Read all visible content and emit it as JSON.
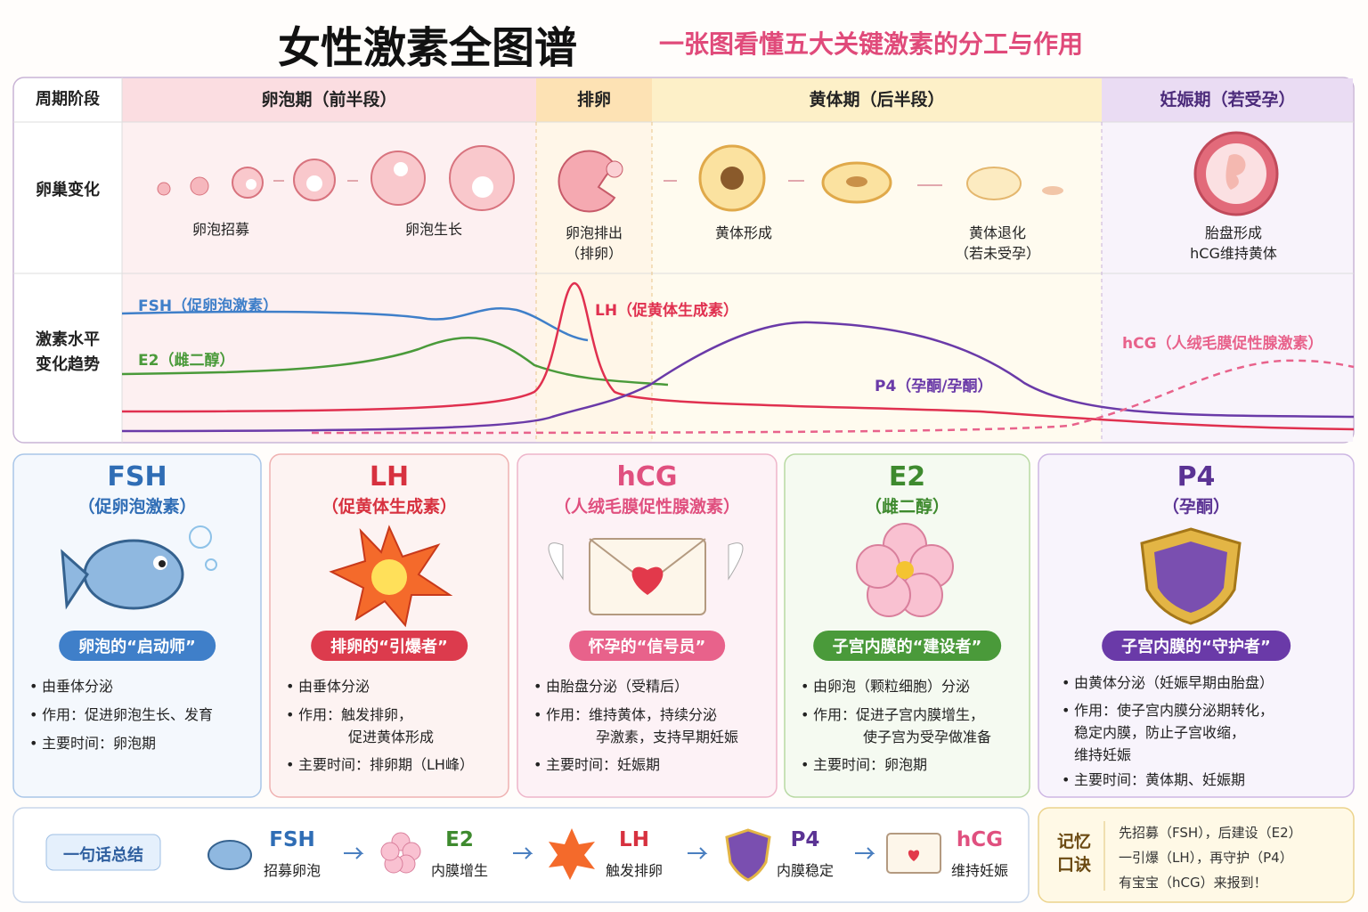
{
  "header": {
    "title": "女性激素全图谱",
    "subtitle": "一张图看懂五大关键激素的分工与作用"
  },
  "timeline": {
    "row_labels": [
      "周期阶段",
      "卵巢变化"
    ],
    "hormone_row_label": [
      "激素水平",
      "变化趋势"
    ],
    "phases": [
      "卵泡期（前半段）",
      "排卵",
      "黄体期（后半段）",
      "妊娠期（若受孕）"
    ],
    "ovary_captions": [
      [
        "卵泡招募"
      ],
      [
        "卵泡生长"
      ],
      [
        "卵泡排出",
        "（排卵）"
      ],
      [
        "黄体形成"
      ],
      [
        "黄体退化",
        "（若未受孕）"
      ],
      [
        "胎盘形成",
        "hCG维持黄体"
      ]
    ],
    "curve_labels": [
      "FSH（促卵泡激素）",
      "E2（雌二醇）",
      "LH（促黄体生成素）",
      "P4（孕酮/孕酮）",
      "hCG（人绒毛膜促性腺激素）"
    ]
  },
  "cards": [
    {
      "name": "FSH",
      "full": "（促卵泡激素）",
      "badge": "卵泡的“启动师”",
      "bullets": [
        [
          "由垂体分泌"
        ],
        [
          "作用：促进卵泡生长、发育"
        ],
        [
          "主要时间：卵泡期"
        ]
      ]
    },
    {
      "name": "LH",
      "full": "（促黄体生成素）",
      "badge": "排卵的“引爆者”",
      "bullets": [
        [
          "由垂体分泌"
        ],
        [
          "作用：触发排卵，",
          "促进黄体形成"
        ],
        [
          "主要时间：排卵期（LH峰）"
        ]
      ]
    },
    {
      "name": "hCG",
      "full": "（人绒毛膜促性腺激素）",
      "badge": "怀孕的“信号员”",
      "bullets": [
        [
          "由胎盘分泌（受精后）"
        ],
        [
          "作用：维持黄体，持续分泌",
          "孕激素，支持早期妊娠"
        ],
        [
          "主要时间：妊娠期"
        ]
      ]
    },
    {
      "name": "E2",
      "full": "（雌二醇）",
      "badge": "子宫内膜的“建设者”",
      "bullets": [
        [
          "由卵泡（颗粒细胞）分泌"
        ],
        [
          "作用：促进子宫内膜增生，",
          "使子宫为受孕做准备"
        ],
        [
          "主要时间：卵泡期"
        ]
      ]
    },
    {
      "name": "P4",
      "full": "（孕酮）",
      "badge": "子宫内膜的“守护者”",
      "bullets": [
        [
          "由黄体分泌（妊娠早期由胎盘）"
        ],
        [
          "作用：使子宫内膜分泌期转化，",
          "稳定内膜，防止子宫收缩，",
          "维持妊娠"
        ],
        [
          "主要时间：黄体期、妊娠期"
        ]
      ]
    }
  ],
  "summary": {
    "label": "一句话总结",
    "steps": [
      {
        "name": "FSH",
        "desc": "招募卵泡"
      },
      {
        "name": "E2",
        "desc": "内膜增生"
      },
      {
        "name": "LH",
        "desc": "触发排卵"
      },
      {
        "name": "P4",
        "desc": "内膜稳定"
      },
      {
        "name": "hCG",
        "desc": "维持妊娠"
      }
    ]
  },
  "memory": {
    "title": [
      "记忆",
      "口诀"
    ],
    "lines": [
      "先招募（FSH），后建设（E2）",
      "一引爆（LH），再守护（P4）",
      "有宝宝（hCG）来报到！"
    ]
  }
}
